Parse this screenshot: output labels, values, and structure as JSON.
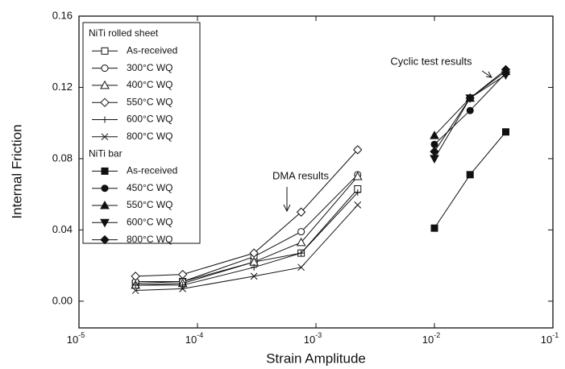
{
  "chart_data": {
    "type": "scatter-line",
    "x_label": "Strain Amplitude",
    "y_label": "Internal Friction",
    "xscale": "log",
    "xlim": [
      1e-05,
      0.1
    ],
    "xticks": [
      {
        "value": 1e-05,
        "label": "10",
        "exponent": "-5"
      },
      {
        "value": 0.0001,
        "label": "10",
        "exponent": "-4"
      },
      {
        "value": 0.001,
        "label": "10",
        "exponent": "-3"
      },
      {
        "value": 0.01,
        "label": "10",
        "exponent": "-2"
      },
      {
        "value": 0.1,
        "label": "10",
        "exponent": "-1"
      }
    ],
    "ylim": [
      -0.015,
      0.16
    ],
    "yticks": [
      {
        "value": 0,
        "label": "0.00"
      },
      {
        "value": 0.04,
        "label": "0.04"
      },
      {
        "value": 0.08,
        "label": "0.08"
      },
      {
        "value": 0.12,
        "label": "0.12"
      },
      {
        "value": 0.16,
        "label": "0.16"
      }
    ],
    "annotations": [
      "DMA results",
      "Cyclic test results"
    ],
    "color": "#111111",
    "series_groups": [
      {
        "name": "NiTi rolled sheet",
        "series": [
          {
            "name": "As-received",
            "marker": "square",
            "filled": false,
            "x": [
              3e-05,
              7.5e-05,
              0.0003,
              0.00075,
              0.00225
            ],
            "values": [
              0.01,
              0.011,
              0.022,
              0.027,
              0.063
            ]
          },
          {
            "name": "300°C WQ",
            "marker": "circle",
            "filled": false,
            "x": [
              3e-05,
              7.5e-05,
              0.0003,
              0.00075,
              0.00225
            ],
            "values": [
              0.011,
              0.011,
              0.025,
              0.039,
              0.071
            ]
          },
          {
            "name": "400°C WQ",
            "marker": "triangle-up",
            "filled": false,
            "x": [
              3e-05,
              7.5e-05,
              0.0003,
              0.00075,
              0.00225
            ],
            "values": [
              0.009,
              0.01,
              0.022,
              0.033,
              0.07
            ]
          },
          {
            "name": "550°C WQ",
            "marker": "diamond",
            "filled": false,
            "x": [
              3e-05,
              7.5e-05,
              0.0003,
              0.00075,
              0.00225
            ],
            "values": [
              0.014,
              0.015,
              0.027,
              0.05,
              0.085
            ]
          },
          {
            "name": "600°C WQ",
            "marker": "plus",
            "filled": false,
            "x": [
              3e-05,
              7.5e-05,
              0.0003,
              0.00075,
              0.00225
            ],
            "values": [
              0.009,
              0.009,
              0.019,
              0.027,
              0.061
            ]
          },
          {
            "name": "800°C WQ",
            "marker": "x",
            "filled": false,
            "x": [
              3e-05,
              7.5e-05,
              0.0003,
              0.00075,
              0.00225
            ],
            "values": [
              0.006,
              0.007,
              0.014,
              0.019,
              0.054
            ]
          }
        ]
      },
      {
        "name": "NiTi bar",
        "series": [
          {
            "name": "As-received",
            "marker": "square",
            "filled": true,
            "x": [
              0.01,
              0.02,
              0.04
            ],
            "values": [
              0.041,
              0.071,
              0.095
            ]
          },
          {
            "name": "450°C WQ",
            "marker": "circle",
            "filled": true,
            "x": [
              0.01,
              0.02,
              0.04
            ],
            "values": [
              0.088,
              0.107,
              0.128
            ]
          },
          {
            "name": "550°C WQ",
            "marker": "triangle-up",
            "filled": true,
            "x": [
              0.01,
              0.02,
              0.04
            ],
            "values": [
              0.093,
              0.114,
              0.129
            ]
          },
          {
            "name": "600°C WQ",
            "marker": "triangle-down",
            "filled": true,
            "x": [
              0.01,
              0.02,
              0.04
            ],
            "values": [
              0.08,
              0.114,
              0.127
            ]
          },
          {
            "name": "800°C WQ",
            "marker": "diamond",
            "filled": true,
            "x": [
              0.01,
              0.02,
              0.04
            ],
            "values": [
              0.084,
              0.114,
              0.13
            ]
          }
        ]
      }
    ]
  }
}
